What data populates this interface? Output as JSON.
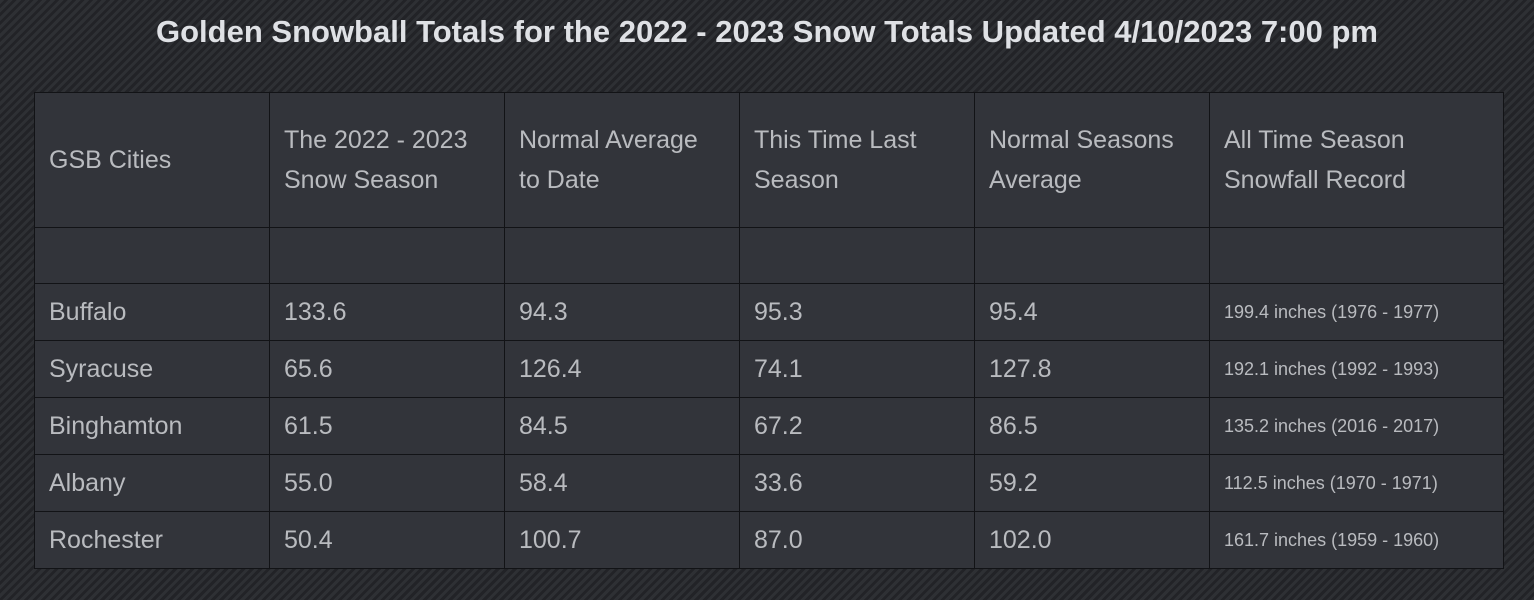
{
  "title": "Golden Snowball Totals for the 2022 - 2023 Snow Totals Updated 4/10/2023 7:00 pm",
  "table": {
    "headers": [
      "GSB Cities",
      "The 2022 - 2023 Snow Season",
      "Normal Average to Date",
      "This Time Last Season",
      "Normal Seasons Average",
      "All Time Season Snowfall Record"
    ],
    "rows": [
      {
        "city": "Buffalo",
        "season": "133.6",
        "normal_to_date": "94.3",
        "last_season": "95.3",
        "season_avg": "95.4",
        "record": "199.4 inches (1976 - 1977)"
      },
      {
        "city": "Syracuse",
        "season": "65.6",
        "normal_to_date": "126.4",
        "last_season": "74.1",
        "season_avg": "127.8",
        "record": "192.1 inches (1992 - 1993)"
      },
      {
        "city": "Binghamton",
        "season": "61.5",
        "normal_to_date": "84.5",
        "last_season": "67.2",
        "season_avg": "86.5",
        "record": "135.2 inches (2016 - 2017)"
      },
      {
        "city": "Albany",
        "season": "55.0",
        "normal_to_date": "58.4",
        "last_season": "33.6",
        "season_avg": "59.2",
        "record": "112.5 inches (1970 - 1971)"
      },
      {
        "city": "Rochester",
        "season": "50.4",
        "normal_to_date": "100.7",
        "last_season": "87.0",
        "season_avg": "102.0",
        "record": "161.7 inches (1959 - 1960)"
      }
    ]
  },
  "colors": {
    "background": "#2b2d31",
    "table_bg": "#32343a",
    "border": "#121316",
    "text": "#b9bbbf",
    "title": "#dfe1e5"
  }
}
